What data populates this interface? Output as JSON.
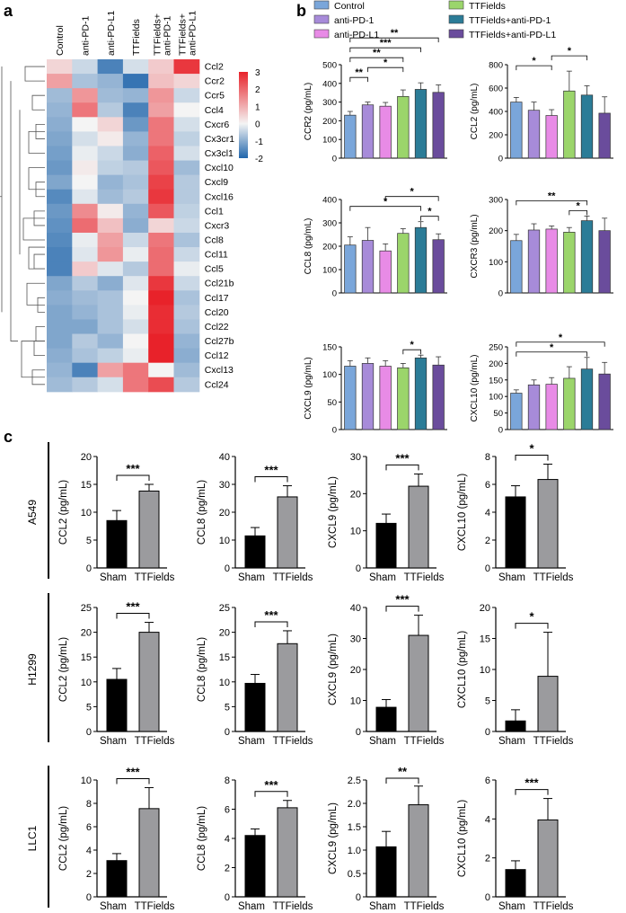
{
  "panel_labels": {
    "a": "a",
    "b": "b",
    "c": "c"
  },
  "colors": {
    "control": "#7aa6da",
    "antipd1": "#a78bd9",
    "antipdl1": "#e88be6",
    "ttfields": "#9bd56b",
    "ttf_pd1": "#2b7c97",
    "ttf_pdl1": "#6a4c9c",
    "sham": "#000000",
    "ttf_gray": "#9b9b9e"
  },
  "chart_data": [
    {
      "type": "heatmap",
      "panel": "a",
      "columns": [
        "Control",
        "anti-PD-1",
        "anti-PD-L1",
        "TTFields",
        "TTFields+\nanti-PD-1",
        "TTFields+\nanti-PD-L1"
      ],
      "rows": [
        "Ccl2",
        "Ccr2",
        "Ccr5",
        "Ccl4",
        "Cxcr6",
        "Cx3cr1",
        "Cx3cl1",
        "Cxcl10",
        "Cxcl9",
        "Cxcl16",
        "Ccl1",
        "Cxcr3",
        "Ccl8",
        "Ccl11",
        "Ccl5",
        "Ccl21b",
        "Ccl17",
        "Ccl20",
        "Ccl22",
        "Ccl27b",
        "Ccl12",
        "Cxcl13",
        "Ccl24"
      ],
      "values": [
        [
          0.3,
          -0.4,
          -1.6,
          -0.3,
          0.4,
          1.8
        ],
        [
          0.8,
          -0.7,
          -0.9,
          -1.8,
          0.5,
          0.3
        ],
        [
          -0.8,
          0.9,
          -0.8,
          -0.9,
          0.9,
          -0.4
        ],
        [
          -0.9,
          1.2,
          -0.6,
          -1.6,
          0.8,
          0.0
        ],
        [
          -1.0,
          0.0,
          0.3,
          -1.3,
          1.2,
          -0.3
        ],
        [
          -1.1,
          -0.3,
          0.1,
          -0.9,
          1.2,
          -0.5
        ],
        [
          -1.2,
          -0.1,
          -0.4,
          -1.0,
          1.4,
          -0.3
        ],
        [
          -1.3,
          0.1,
          -0.5,
          -0.6,
          1.5,
          -0.8
        ],
        [
          -1.1,
          0.0,
          -0.9,
          -0.7,
          1.7,
          -0.6
        ],
        [
          -1.5,
          -0.2,
          -0.8,
          -0.6,
          1.8,
          -0.6
        ],
        [
          -1.3,
          1.0,
          0.1,
          -0.9,
          1.5,
          -0.5
        ],
        [
          -1.4,
          1.3,
          0.5,
          -1.0,
          0.3,
          -0.4
        ],
        [
          -1.5,
          -0.1,
          0.8,
          -0.4,
          1.2,
          -0.7
        ],
        [
          -1.6,
          -0.2,
          0.9,
          -0.1,
          1.3,
          -0.4
        ],
        [
          -1.6,
          0.4,
          -0.2,
          -0.6,
          1.3,
          -0.1
        ],
        [
          -1.1,
          -0.6,
          -1.0,
          -0.2,
          1.8,
          -0.4
        ],
        [
          -1.0,
          -0.8,
          -0.7,
          0.0,
          2.0,
          -0.7
        ],
        [
          -1.1,
          -0.9,
          -0.7,
          -0.1,
          1.9,
          -0.6
        ],
        [
          -1.1,
          -1.1,
          -0.7,
          -0.3,
          1.9,
          -0.7
        ],
        [
          -1.1,
          -0.6,
          -0.9,
          0.0,
          2.0,
          -0.9
        ],
        [
          -1.0,
          -0.7,
          -0.5,
          -0.1,
          2.0,
          -1.0
        ],
        [
          -0.9,
          -1.6,
          0.8,
          1.2,
          0.0,
          -0.8
        ],
        [
          -0.8,
          -0.6,
          -0.3,
          1.2,
          1.6,
          -0.6
        ]
      ],
      "color_scale": {
        "min": -2,
        "max": 3,
        "ticks": [
          "3",
          "2",
          "1",
          "0",
          "-1",
          "-2"
        ],
        "low": "#2166ac",
        "mid": "#f4f4f4",
        "high": "#e8222a"
      }
    },
    {
      "panel": "b",
      "type": "bar",
      "legend": [
        "Control",
        "anti-PD-1",
        "anti-PD-L1",
        "TTFields",
        "TTFields+anti-PD-1",
        "TTFields+anti-PD-L1"
      ],
      "charts": [
        {
          "ylabel": "CCR2 (pg/mL)",
          "ylim": [
            0,
            500
          ],
          "ticks": [
            "0",
            "100",
            "200",
            "300",
            "400",
            "500"
          ],
          "values": [
            230,
            285,
            278,
            330,
            368,
            352
          ],
          "errors": [
            20,
            15,
            20,
            35,
            35,
            40
          ],
          "sig": [
            {
              "a": 0,
              "b": 1,
              "label": "**"
            },
            {
              "a": 1,
              "b": 3,
              "label": "*"
            },
            {
              "a": 0,
              "b": 3,
              "label": "**"
            },
            {
              "a": 0,
              "b": 4,
              "label": "***"
            },
            {
              "a": 0,
              "b": 5,
              "label": "**"
            }
          ]
        },
        {
          "ylabel": "CCL2 (pg/mL)",
          "ylim": [
            0,
            800
          ],
          "ticks": [
            "0",
            "200",
            "400",
            "600",
            "800"
          ],
          "values": [
            480,
            410,
            365,
            575,
            540,
            385
          ],
          "errors": [
            40,
            70,
            50,
            170,
            80,
            140
          ],
          "sig": [
            {
              "a": 0,
              "b": 2,
              "label": "*"
            },
            {
              "a": 2,
              "b": 4,
              "label": "*"
            }
          ]
        },
        {
          "ylabel": "CCL8 (pg/mL)",
          "ylim": [
            0,
            400
          ],
          "ticks": [
            "0",
            "100",
            "200",
            "300",
            "400"
          ],
          "values": [
            205,
            225,
            180,
            255,
            280,
            228
          ],
          "errors": [
            35,
            55,
            30,
            20,
            25,
            25
          ],
          "sig": [
            {
              "a": 4,
              "b": 5,
              "label": "*"
            },
            {
              "a": 0,
              "b": 4,
              "label": "*"
            },
            {
              "a": 2,
              "b": 5,
              "label": "*"
            }
          ]
        },
        {
          "ylabel": "CXCR3 (pg/mL)",
          "ylim": [
            0,
            300
          ],
          "ticks": [
            "0",
            "100",
            "200",
            "300"
          ],
          "values": [
            168,
            202,
            205,
            195,
            232,
            200
          ],
          "errors": [
            20,
            20,
            10,
            15,
            15,
            40
          ],
          "sig": [
            {
              "a": 3,
              "b": 4,
              "label": "*"
            },
            {
              "a": 0,
              "b": 4,
              "label": "**"
            }
          ]
        },
        {
          "ylabel": "CXCL9 (pg/mL)",
          "ylim": [
            0,
            150
          ],
          "ticks": [
            "0",
            "50",
            "100",
            "150"
          ],
          "values": [
            115,
            120,
            115,
            112,
            130,
            117
          ],
          "errors": [
            10,
            10,
            10,
            8,
            5,
            15
          ],
          "sig": [
            {
              "a": 3,
              "b": 4,
              "label": "*"
            }
          ]
        },
        {
          "ylabel": "CXCL10 (pg/mL)",
          "ylim": [
            0,
            250
          ],
          "ticks": [
            "0",
            "50",
            "100",
            "150",
            "200",
            "250"
          ],
          "values": [
            110,
            135,
            137,
            155,
            183,
            168
          ],
          "errors": [
            10,
            15,
            20,
            35,
            35,
            35
          ],
          "sig": [
            {
              "a": 0,
              "b": 4,
              "label": "*"
            },
            {
              "a": 0,
              "b": 5,
              "label": "*"
            }
          ]
        }
      ]
    },
    {
      "panel": "c",
      "type": "bar",
      "categories": [
        "Sham",
        "TTFields"
      ],
      "rows": [
        {
          "label": "A549",
          "charts": [
            {
              "ylabel": "CCL2 (pg/mL)",
              "ylim": [
                0,
                20
              ],
              "ticks": [
                "0",
                "5",
                "10",
                "15",
                "20"
              ],
              "values": [
                8.5,
                13.8
              ],
              "errors": [
                1.8,
                1.2
              ],
              "sig": "***"
            },
            {
              "ylabel": "CCL8 (pg/mL)",
              "ylim": [
                0,
                40
              ],
              "ticks": [
                "0",
                "10",
                "20",
                "30",
                "40"
              ],
              "values": [
                11.5,
                25.5
              ],
              "errors": [
                3,
                4
              ],
              "sig": "***"
            },
            {
              "ylabel": "CXCL9 (pg/mL)",
              "ylim": [
                0,
                30
              ],
              "ticks": [
                "0",
                "10",
                "20",
                "30"
              ],
              "values": [
                12,
                22
              ],
              "errors": [
                2.5,
                3.3
              ],
              "sig": "***"
            },
            {
              "ylabel": "CXCL10 (pg/mL)",
              "ylim": [
                0,
                8
              ],
              "ticks": [
                "0",
                "2",
                "4",
                "6",
                "8"
              ],
              "values": [
                5.1,
                6.35
              ],
              "errors": [
                0.8,
                1.1
              ],
              "sig": "*"
            }
          ]
        },
        {
          "label": "H1299",
          "charts": [
            {
              "ylabel": "CCL2 (pg/mL)",
              "ylim": [
                0,
                25
              ],
              "ticks": [
                "0",
                "5",
                "10",
                "15",
                "20",
                "25"
              ],
              "values": [
                10.5,
                20
              ],
              "errors": [
                2.2,
                2
              ],
              "sig": "***"
            },
            {
              "ylabel": "CCL8 (pg/mL)",
              "ylim": [
                0,
                25
              ],
              "ticks": [
                "0",
                "5",
                "10",
                "15",
                "20",
                "25"
              ],
              "values": [
                9.7,
                17.7
              ],
              "errors": [
                1.8,
                2.6
              ],
              "sig": "***"
            },
            {
              "ylabel": "CXCL9 (pg/mL)",
              "ylim": [
                0,
                40
              ],
              "ticks": [
                "0",
                "10",
                "20",
                "30",
                "40"
              ],
              "values": [
                7.8,
                31
              ],
              "errors": [
                2.5,
                6.5
              ],
              "sig": "***"
            },
            {
              "ylabel": "CXCL10 (pg/mL)",
              "ylim": [
                0,
                20
              ],
              "ticks": [
                "0",
                "5",
                "10",
                "15",
                "20"
              ],
              "values": [
                1.7,
                8.9
              ],
              "errors": [
                1.8,
                7.1
              ],
              "sig": "*"
            }
          ]
        },
        {
          "label": "LLC1",
          "charts": [
            {
              "ylabel": "CCL2 (pg/mL)",
              "ylim": [
                0,
                10
              ],
              "ticks": [
                "0",
                "2",
                "4",
                "6",
                "8",
                "10"
              ],
              "values": [
                3.1,
                7.55
              ],
              "errors": [
                0.6,
                1.8
              ],
              "sig": "***"
            },
            {
              "ylabel": "CCL8 (pg/mL)",
              "ylim": [
                0,
                8
              ],
              "ticks": [
                "0",
                "2",
                "4",
                "6",
                "8"
              ],
              "values": [
                4.2,
                6.1
              ],
              "errors": [
                0.45,
                0.5
              ],
              "sig": "***"
            },
            {
              "ylabel": "CXCL9 (pg/mL)",
              "ylim": [
                0,
                2.5
              ],
              "ticks": [
                "0",
                "0.5",
                "1.0",
                "1.5",
                "2.0",
                "2.5"
              ],
              "values": [
                1.07,
                1.97
              ],
              "errors": [
                0.33,
                0.4
              ],
              "sig": "**"
            },
            {
              "ylabel": "CXCL10 (pg/mL)",
              "ylim": [
                0,
                6
              ],
              "ticks": [
                "0",
                "2",
                "4",
                "6"
              ],
              "values": [
                1.4,
                3.95
              ],
              "errors": [
                0.45,
                1.1
              ],
              "sig": "***"
            }
          ]
        }
      ]
    }
  ]
}
